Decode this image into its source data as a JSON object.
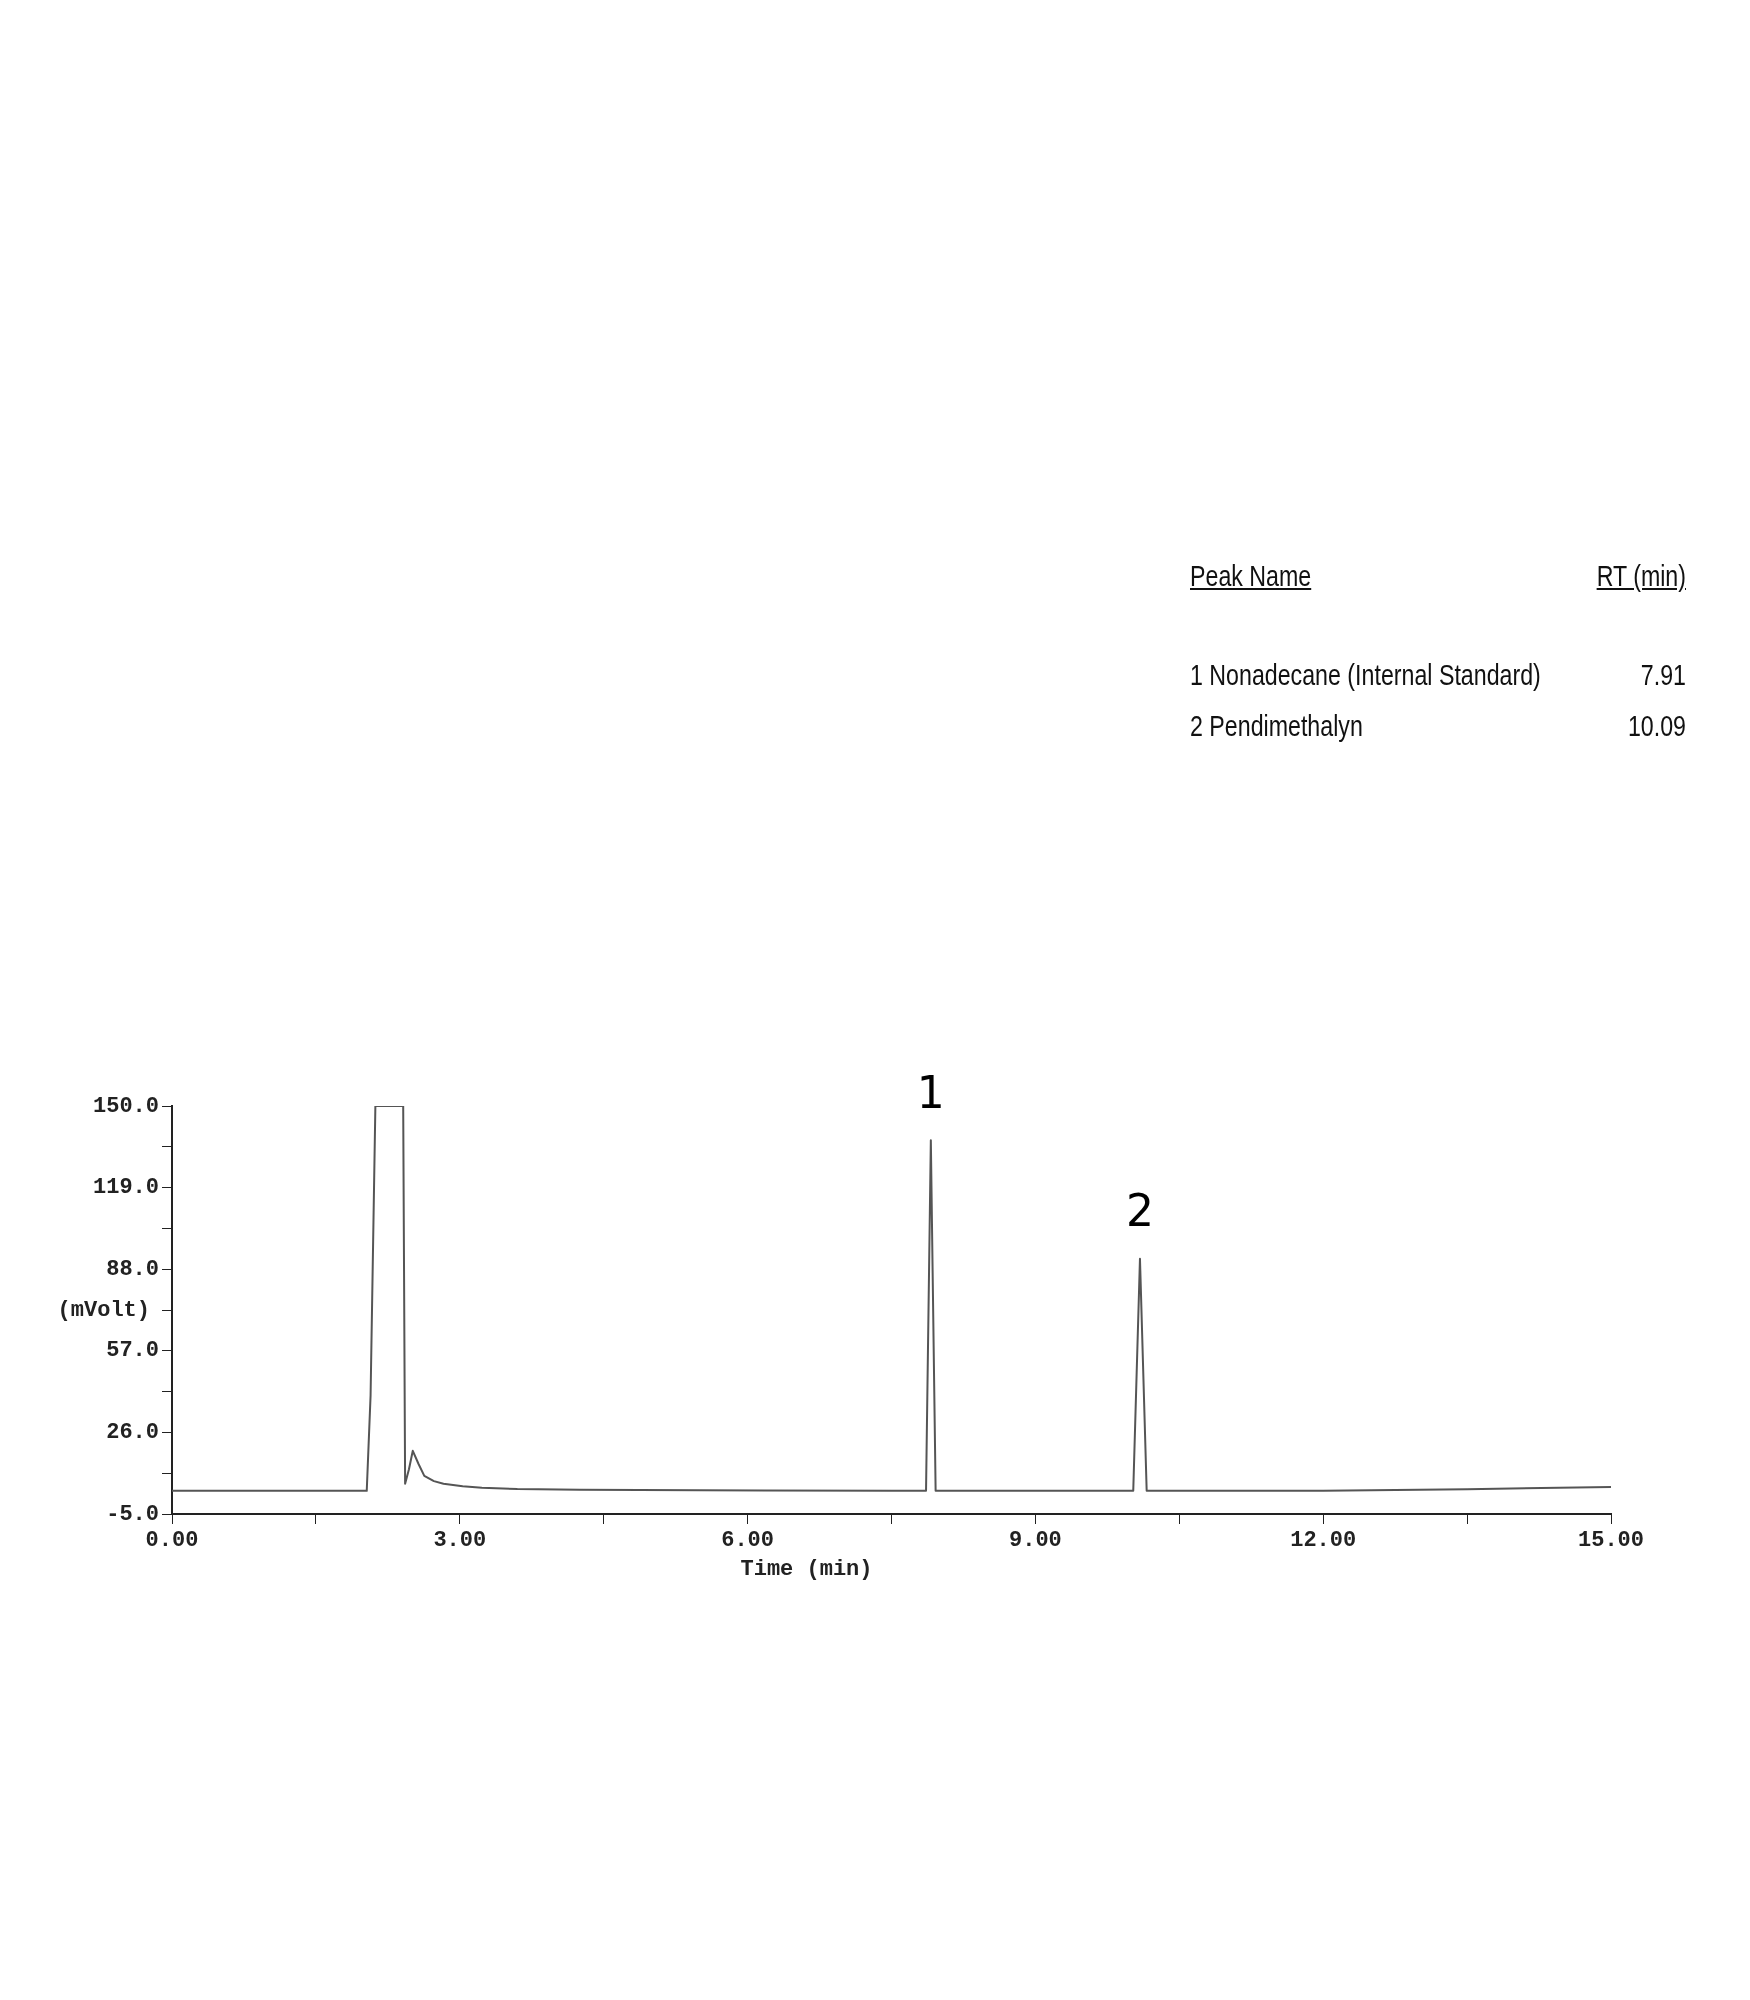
{
  "chart_data": {
    "type": "line",
    "xlabel": "Time (min)",
    "ylabel": "(mVolt)",
    "series": [
      {
        "color": "#555555",
        "x": [
          0,
          2.03,
          2.07,
          2.12,
          2.41,
          2.43,
          2.47,
          2.51,
          2.57,
          2.63,
          2.73,
          2.83,
          3.03,
          3.23,
          3.6,
          4.25,
          5.5,
          7.5,
          7.86,
          7.91,
          7.96,
          10.02,
          10.09,
          10.16,
          12,
          13.5,
          15
        ],
        "values": [
          3.8,
          3.8,
          40,
          150,
          150,
          6.5,
          12,
          19,
          14,
          9.5,
          7.5,
          6.5,
          5.5,
          5,
          4.5,
          4.2,
          4,
          3.8,
          3.8,
          137,
          3.8,
          3.8,
          92,
          3.8,
          3.8,
          4.4,
          5.3
        ]
      }
    ],
    "xlim": [
      0,
      15
    ],
    "xticks": [
      {
        "value": 0,
        "label": "0.00"
      },
      {
        "value": 1.5,
        "label": null
      },
      {
        "value": 3,
        "label": "3.00"
      },
      {
        "value": 4.5,
        "label": null
      },
      {
        "value": 6,
        "label": "6.00"
      },
      {
        "value": 7.5,
        "label": null
      },
      {
        "value": 9,
        "label": "9.00"
      },
      {
        "value": 10.5,
        "label": null
      },
      {
        "value": 12,
        "label": "12.00"
      },
      {
        "value": 13.5,
        "label": null
      },
      {
        "value": 15,
        "label": "15.00"
      }
    ],
    "ylim": [
      -5,
      150
    ],
    "yticks": [
      {
        "value": -5,
        "label": "-5.0"
      },
      {
        "value": 10.5,
        "label": null
      },
      {
        "value": 26,
        "label": "26.0"
      },
      {
        "value": 41.5,
        "label": null
      },
      {
        "value": 57,
        "label": "57.0"
      },
      {
        "value": 72.5,
        "label": null
      },
      {
        "value": 88,
        "label": "88.0"
      },
      {
        "value": 103.5,
        "label": null
      },
      {
        "value": 119,
        "label": "119.0"
      },
      {
        "value": 134.5,
        "label": null
      },
      {
        "value": 150,
        "label": "150.0"
      }
    ],
    "grid": false,
    "legend": false,
    "marker": "none",
    "line_style": "solid",
    "annotations": [
      {
        "text": "1",
        "x": 7.91,
        "y": 137
      },
      {
        "text": "2",
        "x": 10.09,
        "y": 92
      },
      "Peak Name",
      "RT (min)",
      "1 Nonadecane (Internal Standard)",
      "7.91",
      "2 Pendimethalyn",
      "10.09"
    ]
  }
}
